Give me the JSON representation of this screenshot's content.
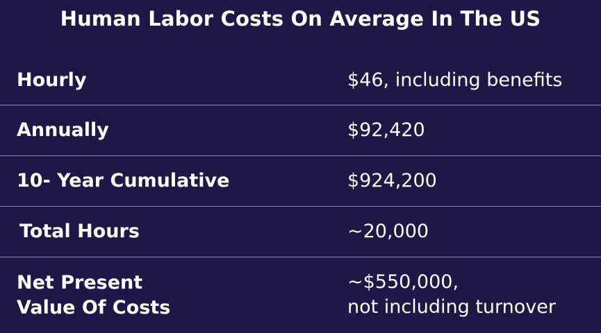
{
  "title": "Human Labor Costs On Average In The US",
  "rows": [
    {
      "label": "Hourly",
      "value": "$46, including benefits"
    },
    {
      "label": "Annually",
      "value": "$92,420"
    },
    {
      "label": "10- Year Cumulative",
      "value": "$924,200"
    },
    {
      "label": "Total Hours",
      "value": "~20,000"
    },
    {
      "label_line1": "Net Present",
      "label_line2": "Value Of Costs",
      "value_line1": "~$550,000,",
      "value_line2": "not including turnover"
    }
  ],
  "colors": {
    "background": "#1f1847",
    "text": "#ffffff",
    "divider": "#8f8bab"
  }
}
